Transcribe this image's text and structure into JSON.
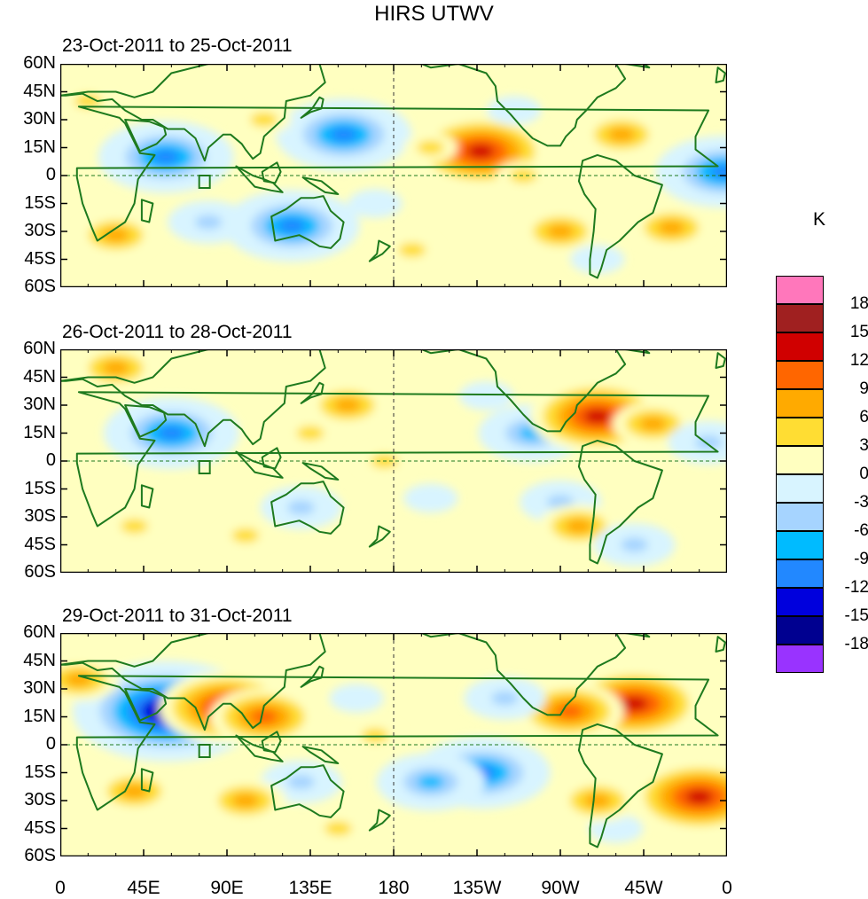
{
  "title": "HIRS UTWV",
  "units": "K",
  "panels": [
    {
      "label": "23-Oct-2011 to 25-Oct-2011"
    },
    {
      "label": "26-Oct-2011 to 28-Oct-2011"
    },
    {
      "label": "29-Oct-2011 to 31-Oct-2011"
    }
  ],
  "y_ticks": [
    "60N",
    "45N",
    "30N",
    "15N",
    "0",
    "15S",
    "30S",
    "45S",
    "60S"
  ],
  "x_ticks": [
    "0",
    "45E",
    "90E",
    "135E",
    "180",
    "135W",
    "90W",
    "45W",
    "0"
  ],
  "colorbar": {
    "colors": [
      "#ff77bb",
      "#a02020",
      "#d00000",
      "#ff6600",
      "#ffaa00",
      "#ffdd33",
      "#ffffc0",
      "#d8f4ff",
      "#a6d4ff",
      "#00bbff",
      "#2288ff",
      "#0000dd",
      "#000090",
      "#9933ff"
    ],
    "labels": [
      "18",
      "15",
      "12",
      "9",
      "6",
      "3",
      "0",
      "-3",
      "-6",
      "-9",
      "-12",
      "-15",
      "-18"
    ]
  },
  "anomaly_features": [
    [
      {
        "lon": 57,
        "lat": 10,
        "val": -14
      },
      {
        "lon": 153,
        "lat": 22,
        "val": -12
      },
      {
        "lon": 227,
        "lat": 13,
        "val": 13
      },
      {
        "lon": 125,
        "lat": -27,
        "val": -12
      },
      {
        "lon": 30,
        "lat": -32,
        "val": 6
      },
      {
        "lon": 80,
        "lat": -25,
        "val": -6
      },
      {
        "lon": 200,
        "lat": 15,
        "val": 5
      },
      {
        "lon": 250,
        "lat": 0,
        "val": 3
      },
      {
        "lon": 303,
        "lat": 22,
        "val": 7
      },
      {
        "lon": 330,
        "lat": -28,
        "val": 6
      },
      {
        "lon": 358,
        "lat": 2,
        "val": -12
      },
      {
        "lon": 170,
        "lat": -15,
        "val": -5
      },
      {
        "lon": 270,
        "lat": -30,
        "val": 6
      },
      {
        "lon": 15,
        "lat": 40,
        "val": 4
      },
      {
        "lon": 245,
        "lat": 35,
        "val": -4
      },
      {
        "lon": 110,
        "lat": 30,
        "val": 5
      },
      {
        "lon": 190,
        "lat": -40,
        "val": 4
      },
      {
        "lon": 290,
        "lat": -45,
        "val": -4
      }
    ],
    [
      {
        "lon": 60,
        "lat": 15,
        "val": -14
      },
      {
        "lon": 270,
        "lat": -22,
        "val": -8
      },
      {
        "lon": 255,
        "lat": 15,
        "val": -9
      },
      {
        "lon": 290,
        "lat": 24,
        "val": 12
      },
      {
        "lon": 155,
        "lat": 30,
        "val": 6
      },
      {
        "lon": 135,
        "lat": 15,
        "val": 5
      },
      {
        "lon": 280,
        "lat": -35,
        "val": 6
      },
      {
        "lon": 320,
        "lat": 20,
        "val": 7
      },
      {
        "lon": 130,
        "lat": -25,
        "val": -7
      },
      {
        "lon": 30,
        "lat": 50,
        "val": 6
      },
      {
        "lon": 200,
        "lat": -20,
        "val": -5
      },
      {
        "lon": 40,
        "lat": -35,
        "val": 4
      },
      {
        "lon": 350,
        "lat": 10,
        "val": -6
      },
      {
        "lon": 230,
        "lat": 35,
        "val": -5
      },
      {
        "lon": 100,
        "lat": -40,
        "val": 4
      },
      {
        "lon": 310,
        "lat": -45,
        "val": -6
      },
      {
        "lon": 175,
        "lat": 0,
        "val": 3
      }
    ],
    [
      {
        "lon": 58,
        "lat": 18,
        "val": -18
      },
      {
        "lon": 90,
        "lat": 20,
        "val": 14
      },
      {
        "lon": 110,
        "lat": 15,
        "val": 11
      },
      {
        "lon": 310,
        "lat": 22,
        "val": 14
      },
      {
        "lon": 345,
        "lat": -28,
        "val": 13
      },
      {
        "lon": 275,
        "lat": 18,
        "val": 9
      },
      {
        "lon": 228,
        "lat": -15,
        "val": -12
      },
      {
        "lon": 200,
        "lat": -20,
        "val": -10
      },
      {
        "lon": 130,
        "lat": -20,
        "val": -8
      },
      {
        "lon": 40,
        "lat": -25,
        "val": 7
      },
      {
        "lon": 100,
        "lat": -30,
        "val": 7
      },
      {
        "lon": 170,
        "lat": 5,
        "val": 5
      },
      {
        "lon": 240,
        "lat": 25,
        "val": -7
      },
      {
        "lon": 160,
        "lat": 25,
        "val": -5
      },
      {
        "lon": 10,
        "lat": 35,
        "val": 6
      },
      {
        "lon": 300,
        "lat": -45,
        "val": -5
      },
      {
        "lon": 290,
        "lat": -30,
        "val": 6
      },
      {
        "lon": 150,
        "lat": -45,
        "val": 4
      }
    ]
  ]
}
